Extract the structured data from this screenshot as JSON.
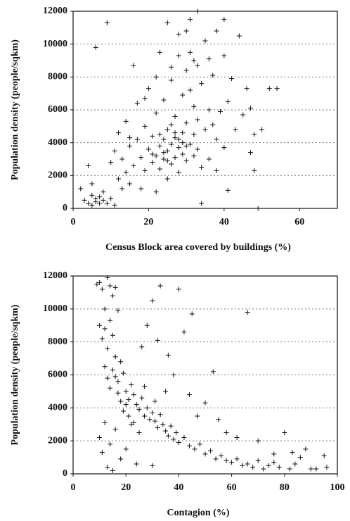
{
  "chart_data": [
    {
      "type": "scatter",
      "xlabel": "Census Block area covered by buildings (%)",
      "ylabel": "Population density (people/sqkm)",
      "xlim": [
        0,
        70
      ],
      "xticks": [
        0,
        20,
        40,
        60
      ],
      "ylim": [
        0,
        12000
      ],
      "yticks": [
        0,
        2000,
        4000,
        6000,
        8000,
        10000,
        12000
      ],
      "grid": true,
      "color": "#111111",
      "x": [
        2,
        3,
        4,
        5,
        5,
        6,
        6,
        7,
        7,
        8,
        8,
        9,
        10,
        4,
        5,
        6,
        9,
        10,
        11,
        12,
        12,
        13,
        14,
        14,
        15,
        15,
        16,
        16,
        17,
        17,
        18,
        18,
        19,
        19,
        20,
        20,
        21,
        21,
        22,
        22,
        22,
        23,
        23,
        23,
        24,
        24,
        24,
        25,
        25,
        25,
        25,
        26,
        26,
        26,
        27,
        27,
        27,
        28,
        28,
        28,
        29,
        29,
        29,
        30,
        30,
        30,
        30,
        31,
        31,
        31,
        32,
        32,
        32,
        33,
        33,
        33,
        34,
        34,
        34,
        35,
        35,
        36,
        36,
        37,
        37,
        38,
        38,
        39,
        40,
        40,
        41,
        41,
        42,
        43,
        44,
        45,
        46,
        47,
        47,
        48,
        48,
        49,
        50,
        52,
        54,
        40,
        38,
        36,
        33,
        31,
        28,
        26,
        22,
        19,
        15,
        13,
        11,
        27,
        29,
        24,
        23,
        21,
        26,
        30,
        32,
        28,
        25
      ],
      "values": [
        1200,
        500,
        300,
        800,
        200,
        600,
        400,
        300,
        700,
        500,
        1000,
        300,
        600,
        2600,
        1500,
        9800,
        11300,
        2800,
        3500,
        1800,
        4600,
        3000,
        2200,
        5300,
        1500,
        3800,
        8700,
        2600,
        4200,
        6400,
        3100,
        1200,
        5000,
        2300,
        3600,
        7300,
        2800,
        4400,
        3200,
        5800,
        1000,
        3800,
        2400,
        9500,
        4200,
        3000,
        6600,
        3500,
        4800,
        11300,
        1800,
        3900,
        2700,
        7800,
        4300,
        5600,
        3100,
        3700,
        9300,
        2200,
        4600,
        6900,
        3300,
        8400,
        5200,
        10800,
        2900,
        3900,
        7200,
        11500,
        4500,
        6200,
        9000,
        3600,
        5400,
        12000,
        7600,
        2500,
        300,
        4800,
        10200,
        6000,
        3000,
        5100,
        8100,
        4200,
        2300,
        5900,
        11500,
        3700,
        6500,
        1100,
        7900,
        4800,
        10500,
        5700,
        7300,
        6100,
        3400,
        4500,
        2300,
        0,
        4800,
        7300,
        7300,
        9300,
        10800,
        9100,
        8700,
        9500,
        10600,
        8600,
        8000,
        6700,
        4300,
        1200,
        200,
        4600,
        4000,
        3400,
        4500,
        3300,
        5100,
        3800,
        3200,
        4200,
        2900
      ]
    },
    {
      "type": "scatter",
      "xlabel": "Contagion (%)",
      "ylabel": "Population density (people/sqkm)",
      "xlim": [
        0,
        100
      ],
      "xticks": [
        0,
        20,
        40,
        60,
        80,
        100
      ],
      "ylim": [
        0,
        12000
      ],
      "yticks": [
        0,
        2000,
        4000,
        6000,
        8000,
        10000,
        12000
      ],
      "grid": true,
      "color": "#111111",
      "x": [
        9,
        10,
        11,
        12,
        13,
        14,
        15,
        16,
        10,
        11,
        12,
        13,
        14,
        15,
        16,
        17,
        12,
        13,
        14,
        15,
        16,
        17,
        18,
        19,
        20,
        21,
        22,
        23,
        24,
        25,
        26,
        27,
        28,
        29,
        30,
        31,
        32,
        33,
        34,
        35,
        36,
        37,
        38,
        39,
        40,
        42,
        44,
        46,
        48,
        50,
        52,
        54,
        56,
        58,
        60,
        62,
        64,
        66,
        68,
        70,
        72,
        74,
        76,
        78,
        80,
        82,
        84,
        86,
        88,
        90,
        95,
        96,
        10,
        11,
        12,
        13,
        14,
        15,
        16,
        18,
        20,
        22,
        24,
        26,
        28,
        30,
        33,
        40,
        45,
        42,
        36,
        32,
        38,
        53,
        66,
        50,
        47,
        44,
        58,
        62,
        30,
        20,
        19,
        21,
        23,
        25,
        18,
        17,
        27,
        31,
        35,
        55,
        70,
        76,
        83,
        92
      ],
      "values": [
        11500,
        11600,
        11200,
        10000,
        11900,
        11400,
        10800,
        11300,
        9000,
        8200,
        8800,
        7600,
        9300,
        8400,
        7100,
        9900,
        6500,
        5800,
        5200,
        6300,
        5900,
        5600,
        6800,
        6100,
        5000,
        4500,
        5400,
        4800,
        4200,
        3900,
        4600,
        3500,
        4000,
        3300,
        3700,
        3200,
        2800,
        3600,
        3000,
        2600,
        2300,
        2900,
        2100,
        2500,
        1900,
        2200,
        1700,
        1500,
        1800,
        1200,
        1400,
        900,
        1100,
        800,
        700,
        900,
        500,
        600,
        400,
        800,
        300,
        500,
        700,
        400,
        2500,
        300,
        600,
        1000,
        1500,
        300,
        1100,
        400,
        2200,
        1300,
        3100,
        400,
        1800,
        200,
        2700,
        900,
        1500,
        3000,
        600,
        7700,
        9000,
        10500,
        11400,
        11200,
        9700,
        8600,
        7200,
        8100,
        6000,
        6200,
        9800,
        4300,
        3500,
        4800,
        2500,
        2200,
        500,
        4200,
        3800,
        3500,
        3100,
        2500,
        4400,
        4900,
        5300,
        4400,
        5000,
        3300,
        2000,
        1200,
        1300,
        300
      ]
    }
  ]
}
